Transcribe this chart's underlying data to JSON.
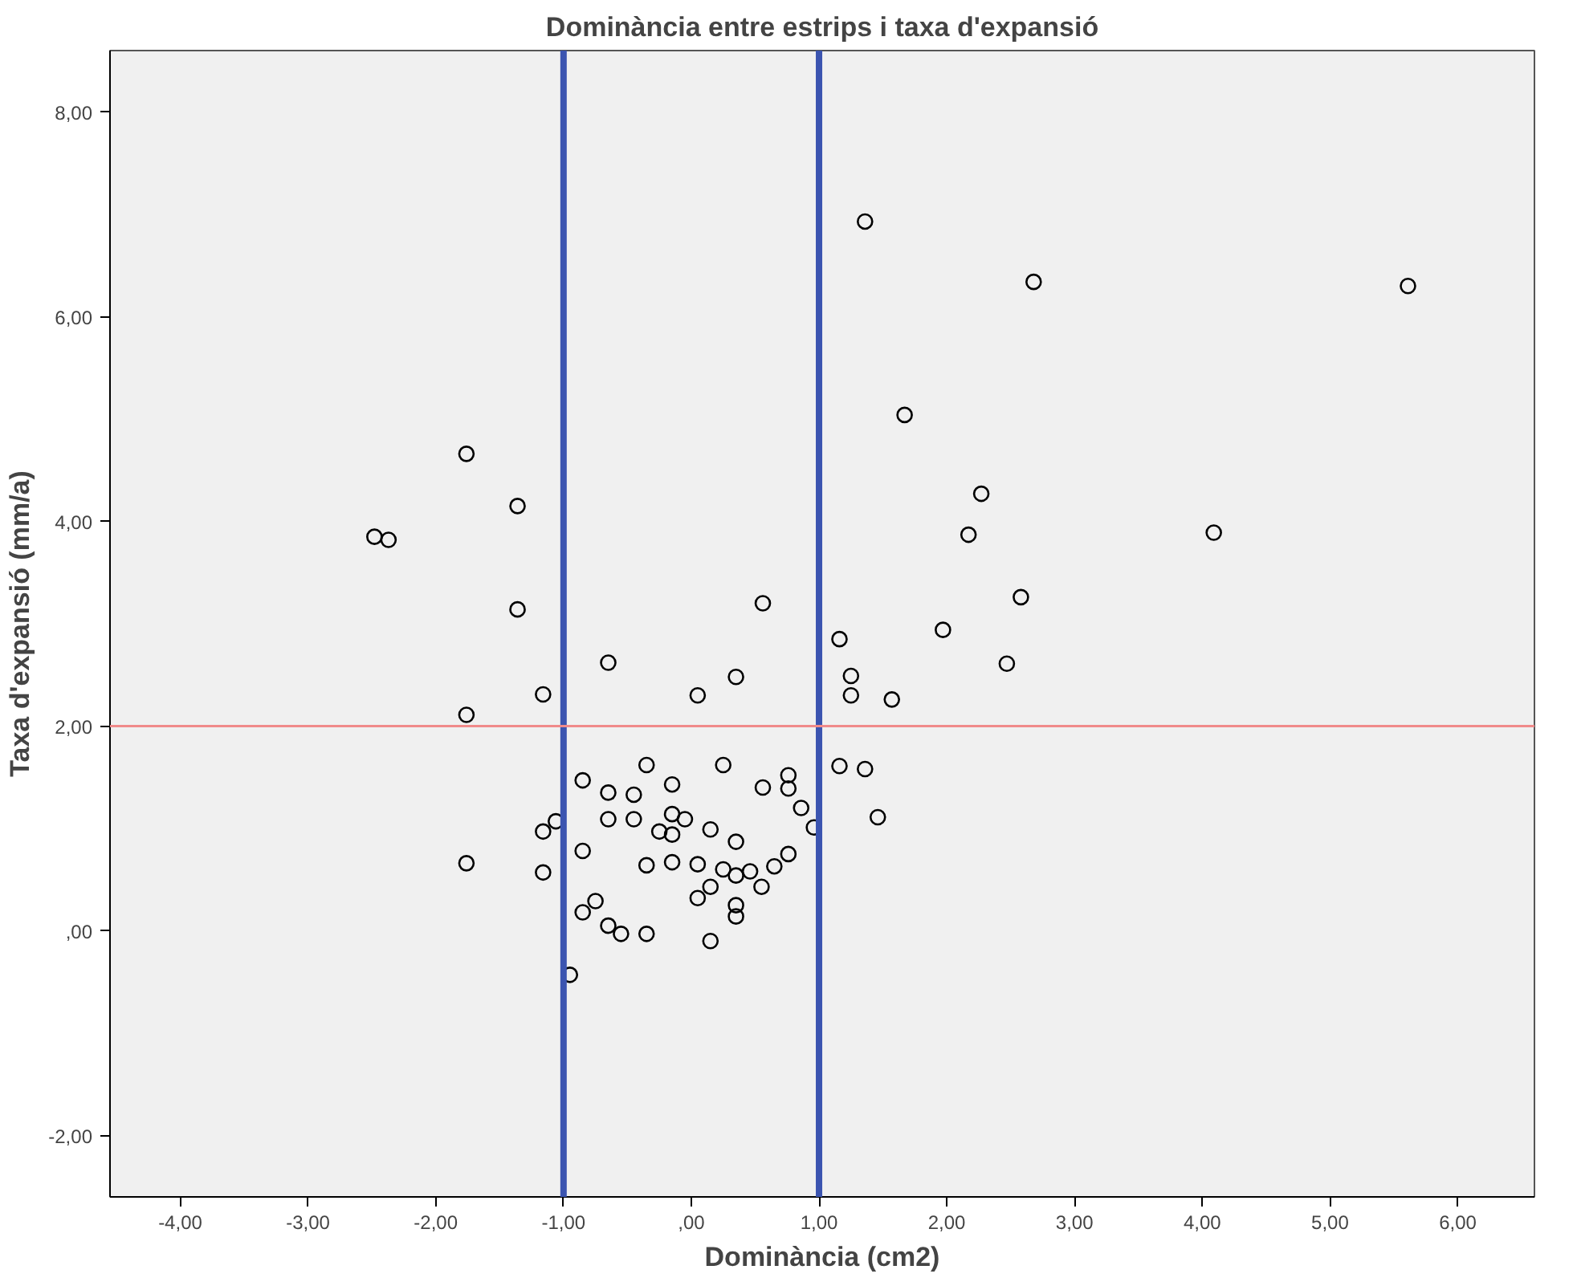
{
  "chart_data": {
    "type": "scatter",
    "title": "Dominància entre estrips i taxa d'expansió",
    "xlabel": "Dominància (cm2)",
    "ylabel": "Taxa d'expansió (mm/a)",
    "xlim": [
      -4.55,
      6.6
    ],
    "ylim": [
      -2.6,
      8.6
    ],
    "xticks": [
      {
        "value": -4,
        "label": "-4,00"
      },
      {
        "value": -3,
        "label": "-3,00"
      },
      {
        "value": -2,
        "label": "-2,00"
      },
      {
        "value": -1,
        "label": "-1,00"
      },
      {
        "value": 0,
        "label": ",00"
      },
      {
        "value": 1,
        "label": "1,00"
      },
      {
        "value": 2,
        "label": "2,00"
      },
      {
        "value": 3,
        "label": "3,00"
      },
      {
        "value": 4,
        "label": "4,00"
      },
      {
        "value": 5,
        "label": "5,00"
      },
      {
        "value": 6,
        "label": "6,00"
      }
    ],
    "yticks": [
      {
        "value": -2,
        "label": "-2,00"
      },
      {
        "value": 0,
        "label": ",00"
      },
      {
        "value": 2,
        "label": "2,00"
      },
      {
        "value": 4,
        "label": "4,00"
      },
      {
        "value": 6,
        "label": "6,00"
      },
      {
        "value": 8,
        "label": "8,00"
      }
    ],
    "grid": false,
    "marker": "circle",
    "ref_lines": [
      {
        "axis": "x",
        "value": -1,
        "label": null,
        "color": "#3b54b0"
      },
      {
        "axis": "x",
        "value": 1,
        "label": null,
        "color": "#3b54b0"
      },
      {
        "axis": "y",
        "value": 2,
        "label": null,
        "color": "#f08a8a"
      }
    ],
    "series": [
      {
        "color": "#000000",
        "x": [
          1.36,
          2.68,
          5.61,
          1.67,
          2.27,
          2.17,
          4.09,
          2.58,
          1.97,
          1.16,
          2.47,
          1.25,
          1.25,
          1.57,
          -1.76,
          -1.36,
          -2.48,
          -2.37,
          -1.36,
          0.56,
          -0.65,
          -1.76,
          -1.16,
          0.05,
          0.35,
          1.16,
          1.36,
          1.46,
          -1.76,
          -1.16,
          -1.16,
          -1.06,
          -0.95,
          -0.85,
          -0.35,
          -0.65,
          -0.45,
          -0.15,
          0.25,
          0.56,
          0.76,
          0.76,
          0.86,
          0.96,
          -0.65,
          -0.45,
          -0.15,
          -0.05,
          -0.25,
          -0.15,
          0.15,
          0.35,
          -0.85,
          -0.35,
          -0.15,
          0.05,
          0.25,
          0.35,
          0.46,
          0.65,
          0.76,
          0.15,
          0.55,
          0.05,
          0.35,
          0.35,
          -0.75,
          -0.85,
          -0.65,
          -0.55,
          -0.35,
          0.15
        ],
        "values": [
          6.93,
          6.34,
          6.3,
          5.04,
          4.27,
          3.87,
          3.89,
          3.26,
          2.94,
          2.85,
          2.61,
          2.49,
          2.3,
          2.26,
          4.66,
          4.15,
          3.85,
          3.82,
          3.14,
          3.2,
          2.62,
          2.11,
          2.31,
          2.3,
          2.48,
          1.61,
          1.58,
          1.11,
          0.66,
          0.57,
          0.97,
          1.07,
          -0.43,
          1.47,
          1.62,
          1.35,
          1.33,
          1.43,
          1.62,
          1.4,
          1.52,
          1.39,
          1.2,
          1.01,
          1.09,
          1.09,
          1.14,
          1.09,
          0.97,
          0.94,
          0.99,
          0.87,
          0.78,
          0.64,
          0.67,
          0.65,
          0.6,
          0.54,
          0.58,
          0.63,
          0.75,
          0.43,
          0.43,
          0.32,
          0.25,
          0.14,
          0.29,
          0.18,
          0.05,
          -0.03,
          -0.03,
          -0.1
        ]
      }
    ]
  }
}
